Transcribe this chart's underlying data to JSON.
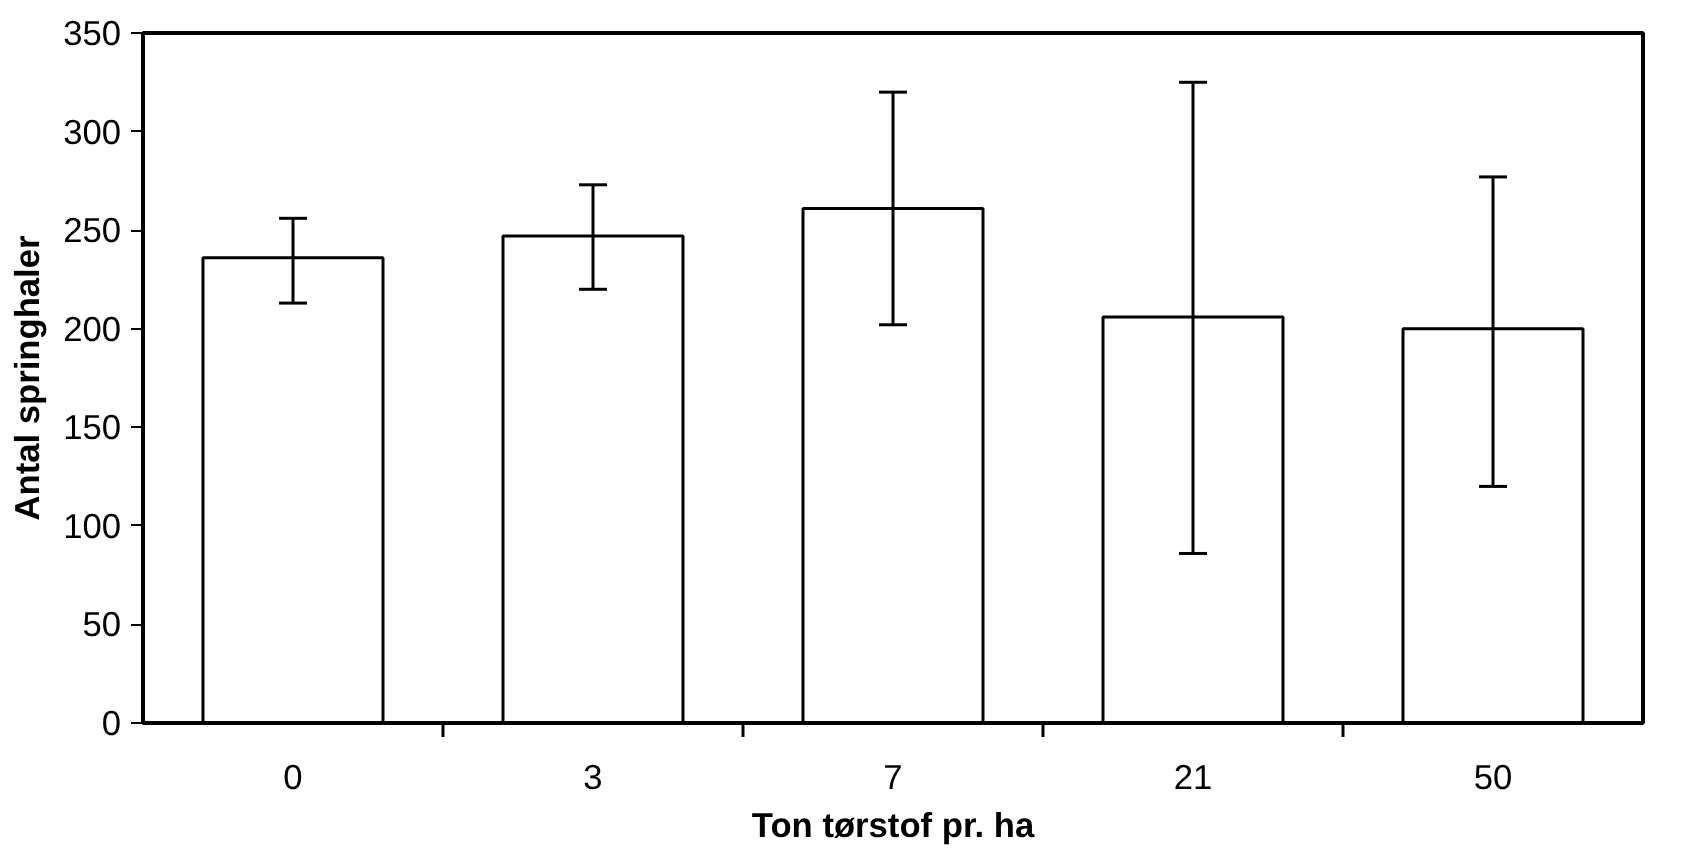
{
  "chart_data": {
    "type": "bar",
    "xlabel": "Ton tørstof pr. ha",
    "ylabel": "Antal springhaler",
    "categories": [
      "0",
      "3",
      "7",
      "21",
      "50"
    ],
    "series": [
      {
        "color": "#ffffff",
        "values": [
          236,
          247,
          261,
          206,
          200
        ],
        "errors": [
          [
            213,
            256
          ],
          [
            220,
            273
          ],
          [
            202,
            320
          ],
          [
            86,
            325
          ],
          [
            120,
            277
          ]
        ]
      }
    ],
    "ylim": [
      0,
      350
    ],
    "yticks": [
      0,
      50,
      100,
      150,
      200,
      250,
      300,
      350
    ],
    "grid": false
  }
}
